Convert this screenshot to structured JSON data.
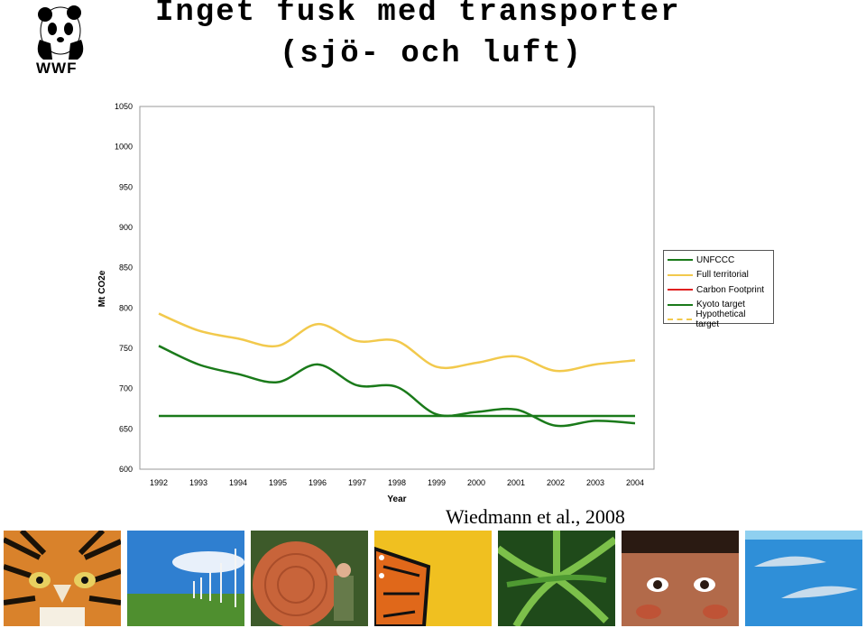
{
  "header": {
    "title_line1": "Inget fusk med transporter",
    "title_line2": "(sjö- och luft)",
    "logo_text": "WWF"
  },
  "citation": "Wiedmann et al., 2008",
  "photos": [
    {
      "name": "tiger-photo"
    },
    {
      "name": "wind-turbines-photo"
    },
    {
      "name": "logged-tree-photo"
    },
    {
      "name": "butterfly-photo"
    },
    {
      "name": "ferns-photo"
    },
    {
      "name": "child-face-photo"
    },
    {
      "name": "dolphins-photo"
    }
  ],
  "chart_data": {
    "type": "line",
    "xlabel": "Year",
    "ylabel": "Mt CO2e",
    "ylim": [
      600,
      1050
    ],
    "yticks": [
      600,
      650,
      700,
      750,
      800,
      850,
      900,
      950,
      1000,
      1050
    ],
    "categories": [
      "1992",
      "1993",
      "1994",
      "1995",
      "1996",
      "1997",
      "1998",
      "1999",
      "2000",
      "2001",
      "2002",
      "2003",
      "2004"
    ],
    "grid": false,
    "legend_position": "right",
    "legend": [
      {
        "name": "UNFCCC",
        "color": "#1a7a1a",
        "dash": false
      },
      {
        "name": "Full territorial",
        "color": "#f2c94c",
        "dash": false
      },
      {
        "name": "Carbon Footprint",
        "color": "#e02020",
        "dash": false
      },
      {
        "name": "Kyoto target",
        "color": "#1a7a1a",
        "dash": false
      },
      {
        "name": "Hypothetical target",
        "color": "#f2c94c",
        "dash": true
      }
    ],
    "series": [
      {
        "name": "Full territorial",
        "color": "#f2c94c",
        "values": [
          793,
          772,
          762,
          753,
          780,
          759,
          759,
          727,
          732,
          740,
          722,
          730,
          735
        ]
      },
      {
        "name": "UNFCCC",
        "color": "#1a7a1a",
        "values": [
          753,
          730,
          718,
          708,
          730,
          704,
          702,
          668,
          671,
          674,
          654,
          660,
          657
        ]
      },
      {
        "name": "Kyoto target",
        "color": "#1a7a1a",
        "values": [
          666,
          666,
          666,
          666,
          666,
          666,
          666,
          666,
          666,
          666,
          666,
          666,
          666
        ]
      }
    ]
  }
}
